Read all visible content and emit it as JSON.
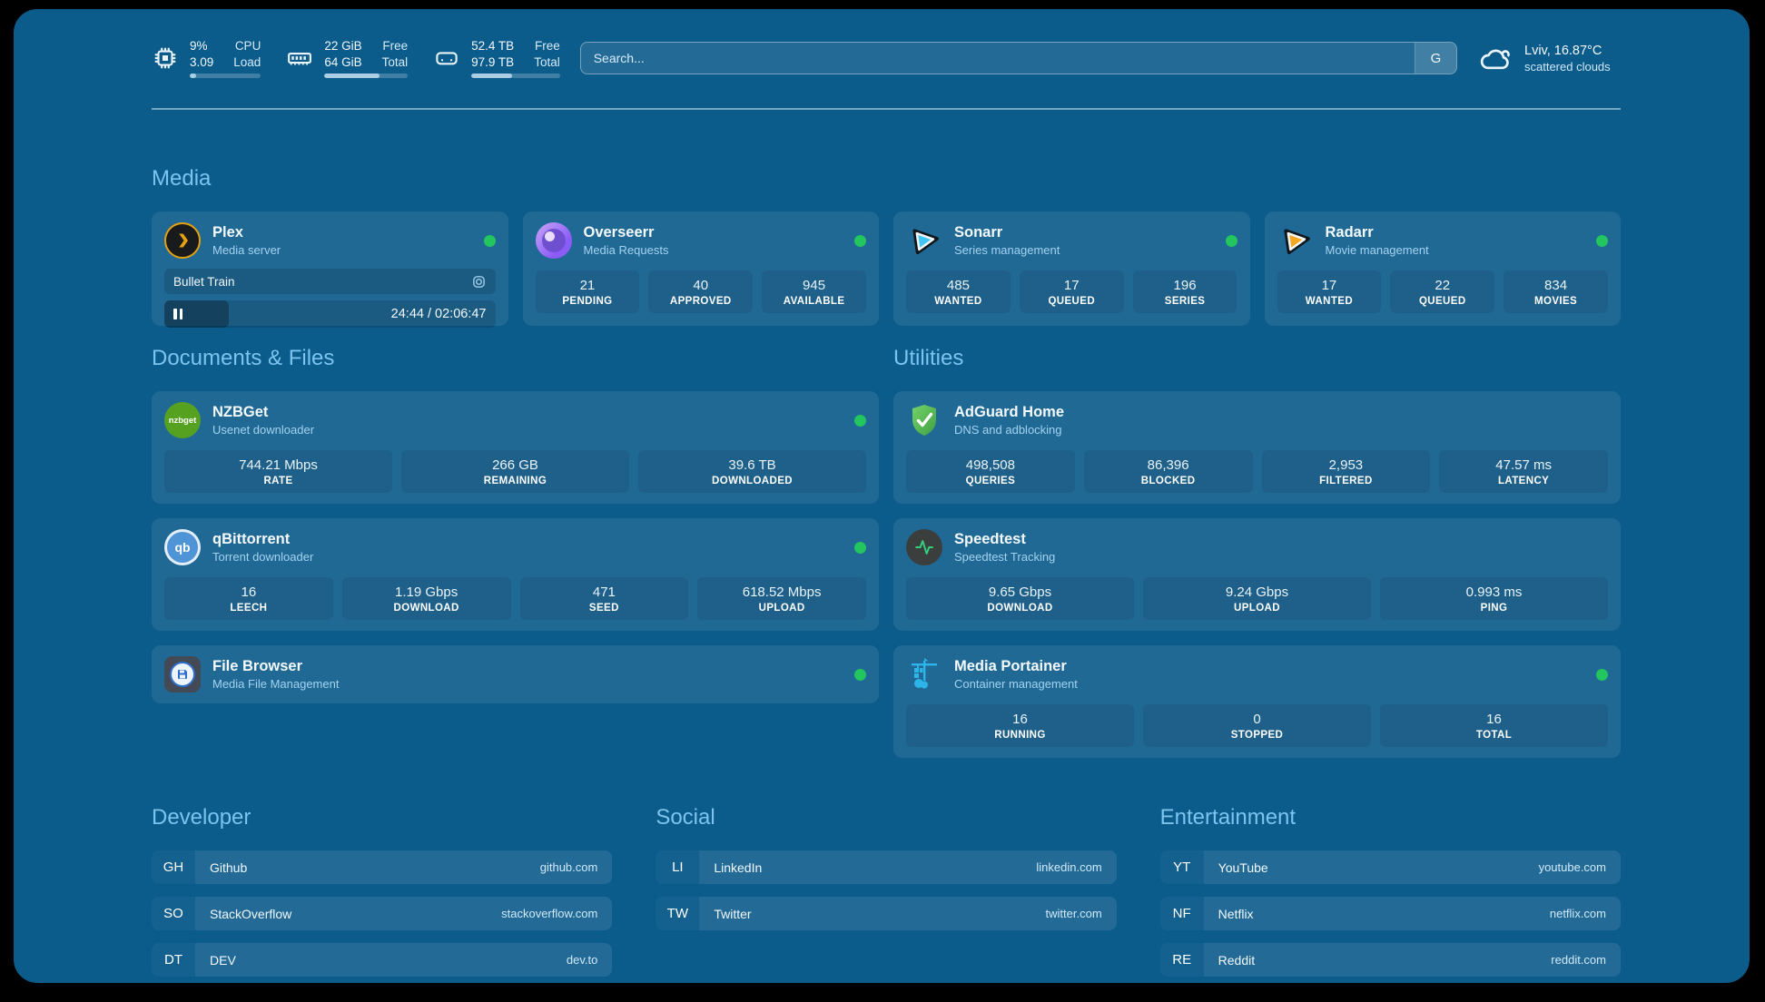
{
  "topbar": {
    "resources": [
      {
        "icon": "cpu-icon",
        "value1": "9%",
        "value2": "3.09",
        "label1": "CPU",
        "label2": "Load",
        "progress_pct": 9
      },
      {
        "icon": "memory-icon",
        "value1": "22 GiB",
        "value2": "64 GiB",
        "label1": "Free",
        "label2": "Total",
        "progress_pct": 66
      },
      {
        "icon": "disk-icon",
        "value1": "52.4 TB",
        "value2": "97.9 TB",
        "label1": "Free",
        "label2": "Total",
        "progress_pct": 46
      }
    ],
    "search": {
      "placeholder": "Search...",
      "engine_button": "G"
    },
    "weather": {
      "location_temp": "Lviv, 16.87°C",
      "condition": "scattered clouds"
    }
  },
  "section_titles": {
    "media": "Media",
    "documents": "Documents & Files",
    "utilities": "Utilities"
  },
  "services": {
    "plex": {
      "name": "Plex",
      "desc": "Media server",
      "status": "online",
      "now_playing": {
        "title": "Bullet Train",
        "time_text": "24:44 / 02:06:47",
        "progress_pct": 19.5
      }
    },
    "overseerr": {
      "name": "Overseerr",
      "desc": "Media Requests",
      "status": "online",
      "stats": [
        {
          "value": "21",
          "label": "PENDING"
        },
        {
          "value": "40",
          "label": "APPROVED"
        },
        {
          "value": "945",
          "label": "AVAILABLE"
        }
      ]
    },
    "sonarr": {
      "name": "Sonarr",
      "desc": "Series management",
      "status": "online",
      "stats": [
        {
          "value": "485",
          "label": "WANTED"
        },
        {
          "value": "17",
          "label": "QUEUED"
        },
        {
          "value": "196",
          "label": "SERIES"
        }
      ]
    },
    "radarr": {
      "name": "Radarr",
      "desc": "Movie management",
      "status": "online",
      "stats": [
        {
          "value": "17",
          "label": "WANTED"
        },
        {
          "value": "22",
          "label": "QUEUED"
        },
        {
          "value": "834",
          "label": "MOVIES"
        }
      ]
    },
    "nzbget": {
      "name": "NZBGet",
      "desc": "Usenet downloader",
      "status": "online",
      "icon_text": "nzbget",
      "stats": [
        {
          "value": "744.21 Mbps",
          "label": "RATE"
        },
        {
          "value": "266 GB",
          "label": "REMAINING"
        },
        {
          "value": "39.6 TB",
          "label": "DOWNLOADED"
        }
      ]
    },
    "qbittorrent": {
      "name": "qBittorrent",
      "desc": "Torrent downloader",
      "status": "online",
      "icon_text": "qb",
      "stats": [
        {
          "value": "16",
          "label": "LEECH"
        },
        {
          "value": "1.19 Gbps",
          "label": "DOWNLOAD"
        },
        {
          "value": "471",
          "label": "SEED"
        },
        {
          "value": "618.52 Mbps",
          "label": "UPLOAD"
        }
      ]
    },
    "filebrowser": {
      "name": "File Browser",
      "desc": "Media File Management",
      "status": "online"
    },
    "adguard": {
      "name": "AdGuard Home",
      "desc": "DNS and adblocking",
      "stats": [
        {
          "value": "498,508",
          "label": "QUERIES"
        },
        {
          "value": "86,396",
          "label": "BLOCKED"
        },
        {
          "value": "2,953",
          "label": "FILTERED"
        },
        {
          "value": "47.57 ms",
          "label": "LATENCY"
        }
      ]
    },
    "speedtest": {
      "name": "Speedtest",
      "desc": "Speedtest Tracking",
      "stats": [
        {
          "value": "9.65 Gbps",
          "label": "DOWNLOAD"
        },
        {
          "value": "9.24 Gbps",
          "label": "UPLOAD"
        },
        {
          "value": "0.993 ms",
          "label": "PING"
        }
      ]
    },
    "portainer": {
      "name": "Media Portainer",
      "desc": "Container management",
      "status": "online",
      "stats": [
        {
          "value": "16",
          "label": "RUNNING"
        },
        {
          "value": "0",
          "label": "STOPPED"
        },
        {
          "value": "16",
          "label": "TOTAL"
        }
      ]
    }
  },
  "bookmarks": {
    "developer": {
      "title": "Developer",
      "items": [
        {
          "abbr": "GH",
          "name": "Github",
          "url": "github.com"
        },
        {
          "abbr": "SO",
          "name": "StackOverflow",
          "url": "stackoverflow.com"
        },
        {
          "abbr": "DT",
          "name": "DEV",
          "url": "dev.to"
        }
      ]
    },
    "social": {
      "title": "Social",
      "items": [
        {
          "abbr": "LI",
          "name": "LinkedIn",
          "url": "linkedin.com"
        },
        {
          "abbr": "TW",
          "name": "Twitter",
          "url": "twitter.com"
        }
      ]
    },
    "entertainment": {
      "title": "Entertainment",
      "items": [
        {
          "abbr": "YT",
          "name": "YouTube",
          "url": "youtube.com"
        },
        {
          "abbr": "NF",
          "name": "Netflix",
          "url": "netflix.com"
        },
        {
          "abbr": "RE",
          "name": "Reddit",
          "url": "reddit.com"
        }
      ]
    }
  },
  "colors": {
    "page_bg": "#0b5b8b",
    "heading": "#7cc4ee",
    "status_online": "#22c55e",
    "plex_accent": "#e5a00d",
    "sonarr_accent": "#41c5f5",
    "radarr_accent": "#f7a823",
    "adguard_accent": "#5bc15a",
    "portainer_accent": "#2db4e8"
  }
}
